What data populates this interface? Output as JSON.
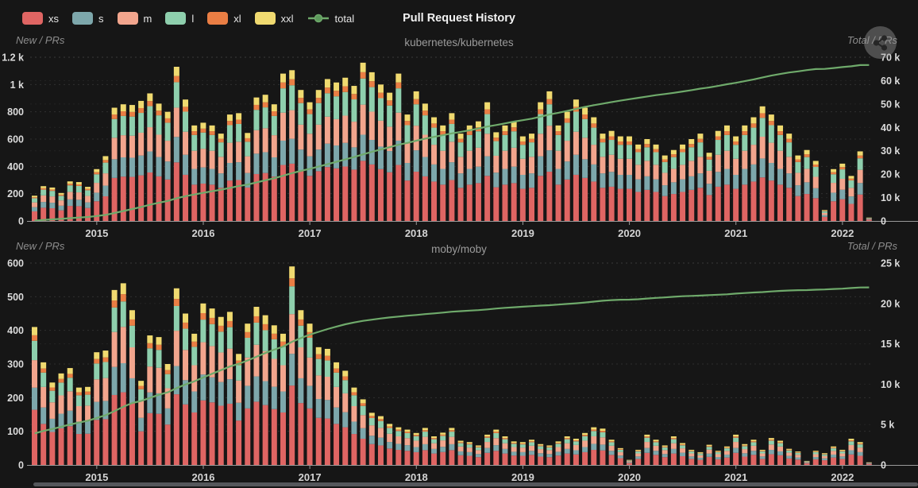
{
  "title": "Pull Request History",
  "legend": {
    "items": [
      {
        "label": "xs",
        "color": "#df6563",
        "type": "box"
      },
      {
        "label": "s",
        "color": "#7da7ab",
        "type": "box"
      },
      {
        "label": "m",
        "color": "#f2a58d",
        "type": "box"
      },
      {
        "label": "l",
        "color": "#8ecfad",
        "type": "box"
      },
      {
        "label": "xl",
        "color": "#ea7e44",
        "type": "box"
      },
      {
        "label": "xxl",
        "color": "#f0da70",
        "type": "box"
      },
      {
        "label": "total",
        "color": "#6faa6b",
        "type": "line"
      }
    ]
  },
  "share_button": {
    "icon": "share-nodes"
  },
  "colors": {
    "background": "#161616",
    "axis_text": "#dcdcdc",
    "grid": "rgba(255,255,255,0.10)",
    "axis_line": "#9a9a9a"
  },
  "chart_data": [
    {
      "type": "bar",
      "stacked": true,
      "title": "kubernetes/kubernetes",
      "left_axis_label": "New / PRs",
      "right_axis_label": "Total / PRs",
      "left_ticks": [
        "0",
        "200",
        "400",
        "600",
        "800",
        "1 k",
        "1.2 k"
      ],
      "left_axis_max": 1200,
      "right_ticks": [
        "0",
        "10 k",
        "20 k",
        "30 k",
        "40 k",
        "50 k",
        "60 k",
        "70 k"
      ],
      "right_axis_max": 70000,
      "x_ticks": [
        "2015",
        "2016",
        "2017",
        "2018",
        "2019",
        "2020",
        "2021",
        "2022"
      ],
      "start_month": "2014-06",
      "monthly_totals": [
        185,
        255,
        245,
        205,
        290,
        285,
        250,
        380,
        475,
        830,
        855,
        850,
        880,
        935,
        860,
        800,
        1130,
        890,
        700,
        720,
        700,
        640,
        780,
        790,
        645,
        905,
        925,
        855,
        1080,
        1105,
        960,
        870,
        960,
        1040,
        1015,
        1050,
        990,
        1160,
        1090,
        1000,
        940,
        1080,
        780,
        950,
        860,
        760,
        700,
        790,
        640,
        700,
        730,
        870,
        650,
        700,
        730,
        620,
        640,
        870,
        950,
        700,
        800,
        890,
        830,
        760,
        640,
        660,
        620,
        620,
        560,
        600,
        560,
        480,
        520,
        560,
        600,
        640,
        500,
        660,
        700,
        620,
        700,
        760,
        840,
        780,
        700,
        640,
        480,
        520,
        440,
        80,
        380,
        420,
        330,
        510,
        25
      ],
      "series": [
        {
          "name": "xs",
          "color": "#df6563",
          "fraction": 0.38
        },
        {
          "name": "s",
          "color": "#7da7ab",
          "fraction": 0.165
        },
        {
          "name": "m",
          "color": "#f2a58d",
          "fraction": 0.19
        },
        {
          "name": "l",
          "color": "#8ecfad",
          "fraction": 0.165
        },
        {
          "name": "xl",
          "color": "#ea7e44",
          "fraction": 0.04
        },
        {
          "name": "xxl",
          "color": "#f0da70",
          "fraction": 0.06
        }
      ],
      "total_line": {
        "name": "total",
        "color": "#6faa6b",
        "cumulative_start": 0
      }
    },
    {
      "type": "bar",
      "stacked": true,
      "title": "moby/moby",
      "left_axis_label": "New / PRs",
      "right_axis_label": "Total / PRs",
      "left_ticks": [
        "0",
        "100",
        "200",
        "300",
        "400",
        "500",
        "600"
      ],
      "left_axis_max": 600,
      "right_ticks": [
        "0",
        "5 k",
        "10 k",
        "15 k",
        "20 k",
        "25 k"
      ],
      "right_axis_max": 25000,
      "x_ticks": [
        "2015",
        "2016",
        "2017",
        "2018",
        "2019",
        "2020",
        "2021",
        "2022"
      ],
      "start_month": "2014-06",
      "monthly_totals": [
        410,
        305,
        245,
        272,
        288,
        230,
        232,
        335,
        340,
        520,
        540,
        460,
        250,
        385,
        380,
        300,
        525,
        450,
        390,
        480,
        465,
        440,
        455,
        330,
        420,
        470,
        445,
        415,
        390,
        590,
        460,
        420,
        350,
        345,
        305,
        280,
        230,
        195,
        155,
        145,
        122,
        112,
        105,
        95,
        110,
        85,
        96,
        110,
        72,
        68,
        58,
        90,
        105,
        85,
        70,
        68,
        75,
        62,
        58,
        70,
        85,
        78,
        95,
        112,
        108,
        75,
        50,
        15,
        45,
        90,
        75,
        58,
        85,
        65,
        45,
        38,
        60,
        42,
        55,
        90,
        62,
        75,
        45,
        80,
        72,
        48,
        40,
        12,
        42,
        35,
        55,
        45,
        78,
        68,
        8
      ],
      "series": [
        {
          "name": "xs",
          "color": "#df6563",
          "fraction": 0.4
        },
        {
          "name": "s",
          "color": "#7da7ab",
          "fraction": 0.16
        },
        {
          "name": "m",
          "color": "#f2a58d",
          "fraction": 0.2
        },
        {
          "name": "l",
          "color": "#8ecfad",
          "fraction": 0.14
        },
        {
          "name": "xl",
          "color": "#ea7e44",
          "fraction": 0.04
        },
        {
          "name": "xxl",
          "color": "#f0da70",
          "fraction": 0.06
        }
      ],
      "total_line": {
        "name": "total",
        "color": "#6faa6b",
        "cumulative_start": 3500
      }
    }
  ]
}
